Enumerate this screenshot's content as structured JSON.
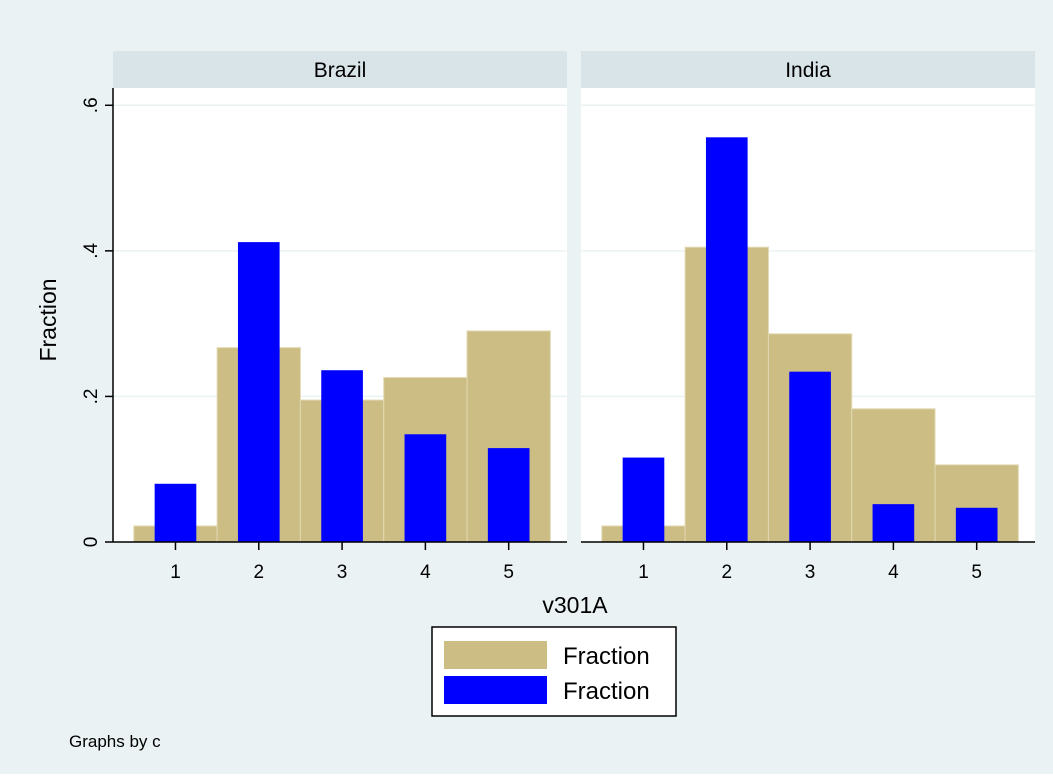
{
  "chart_data": {
    "type": "bar",
    "ylabel": "Fraction",
    "xlabel": "v301A",
    "note": "Graphs by c",
    "x_ticks": [
      1,
      2,
      3,
      4,
      5
    ],
    "y_ticks": [
      {
        "value": 0,
        "label": "0"
      },
      {
        "value": 0.2,
        "label": ".2"
      },
      {
        "value": 0.4,
        "label": ".4"
      },
      {
        "value": 0.6,
        "label": ".6"
      }
    ],
    "ylim": [
      0,
      0.61
    ],
    "xlim": [
      0.25,
      5.7
    ],
    "grid": true,
    "legend": {
      "position": "bottom-center",
      "entries": [
        {
          "label": "Fraction",
          "color": "#cbbd83"
        },
        {
          "label": "Fraction",
          "color": "#0000ff"
        }
      ]
    },
    "colors": {
      "outer_background": "#eaf2f3",
      "plot_background": "#ffffff",
      "panel_header": "#d9e4e8",
      "series_a": "#cbbd83",
      "series_b": "#0000ff",
      "grid": "#eaf2f3"
    },
    "panels": [
      {
        "title": "Brazil",
        "background_series": {
          "name": "Fraction",
          "bins": [
            {
              "x0": 0.5,
              "x1": 1.5,
              "value": 0.022
            },
            {
              "x0": 1.5,
              "x1": 2.5,
              "value": 0.267
            },
            {
              "x0": 2.5,
              "x1": 3.5,
              "value": 0.195
            },
            {
              "x0": 3.5,
              "x1": 4.5,
              "value": 0.226
            },
            {
              "x0": 4.5,
              "x1": 5.5,
              "value": 0.29
            }
          ]
        },
        "foreground_series": {
          "name": "Fraction",
          "bar_width": 0.5,
          "bars": [
            {
              "x": 1,
              "value": 0.08
            },
            {
              "x": 2,
              "value": 0.412
            },
            {
              "x": 3,
              "value": 0.236
            },
            {
              "x": 4,
              "value": 0.148
            },
            {
              "x": 5,
              "value": 0.129
            }
          ]
        }
      },
      {
        "title": "India",
        "background_series": {
          "name": "Fraction",
          "bins": [
            {
              "x0": 0.5,
              "x1": 1.5,
              "value": 0.022
            },
            {
              "x0": 1.5,
              "x1": 2.5,
              "value": 0.405
            },
            {
              "x0": 2.5,
              "x1": 3.5,
              "value": 0.286
            },
            {
              "x0": 3.5,
              "x1": 4.5,
              "value": 0.183
            },
            {
              "x0": 4.5,
              "x1": 5.5,
              "value": 0.106
            }
          ]
        },
        "foreground_series": {
          "name": "Fraction",
          "bar_width": 0.5,
          "bars": [
            {
              "x": 1,
              "value": 0.116
            },
            {
              "x": 2,
              "value": 0.556
            },
            {
              "x": 3,
              "value": 0.234
            },
            {
              "x": 4,
              "value": 0.052
            },
            {
              "x": 5,
              "value": 0.047
            }
          ]
        }
      }
    ]
  }
}
